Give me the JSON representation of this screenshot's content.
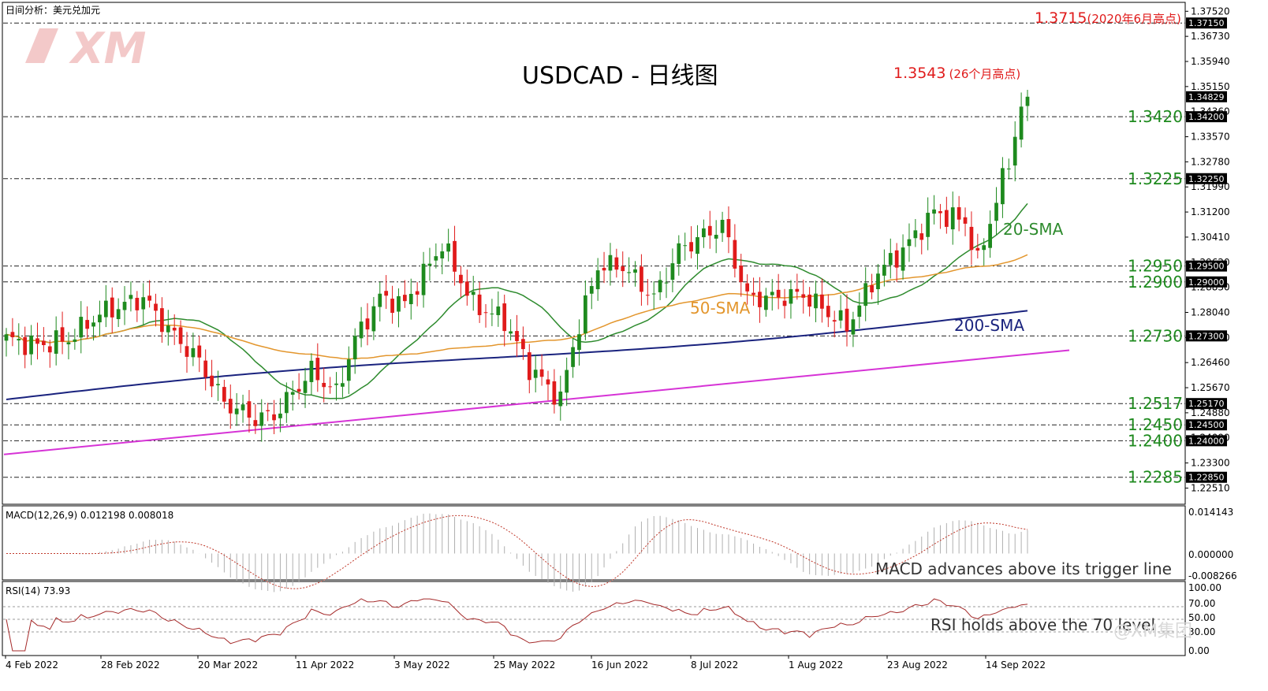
{
  "header": {
    "corner_text": "日间分析：美元兑加元",
    "watermark": "XM"
  },
  "title": "USDCAD - 日线图",
  "price_axis": {
    "min": 1.22,
    "max": 1.378,
    "ticks": [
      "1.37520",
      "1.36730",
      "1.35940",
      "1.35150",
      "1.34360",
      "1.33570",
      "1.32780",
      "1.31990",
      "1.31200",
      "1.30410",
      "1.29620",
      "1.28830",
      "1.28040",
      "1.27250",
      "1.26460",
      "1.25670",
      "1.24880",
      "1.24090",
      "1.23300",
      "1.22510"
    ],
    "boxes": [
      {
        "value": 1.3715,
        "text": "1.37150"
      },
      {
        "value": 1.34829,
        "text": "1.34829"
      },
      {
        "value": 1.342,
        "text": "1.34200"
      },
      {
        "value": 1.3225,
        "text": "1.32250"
      },
      {
        "value": 1.295,
        "text": "1.29500"
      },
      {
        "value": 1.29,
        "text": "1.29000"
      },
      {
        "value": 1.273,
        "text": "1.27300"
      },
      {
        "value": 1.2517,
        "text": "1.25170"
      },
      {
        "value": 1.245,
        "text": "1.24500"
      },
      {
        "value": 1.24,
        "text": "1.24000"
      },
      {
        "value": 1.2285,
        "text": "1.22850"
      }
    ]
  },
  "levels": [
    {
      "value": 1.342,
      "text": "1.3420"
    },
    {
      "value": 1.3225,
      "text": "1.3225"
    },
    {
      "value": 1.295,
      "text": "1.2950"
    },
    {
      "value": 1.29,
      "text": "1.2900"
    },
    {
      "value": 1.273,
      "text": "1.2730"
    },
    {
      "value": 1.2517,
      "text": "1.2517"
    },
    {
      "value": 1.245,
      "text": "1.2450"
    },
    {
      "value": 1.24,
      "text": "1.2400"
    },
    {
      "value": 1.2285,
      "text": "1.2285"
    }
  ],
  "annotations": {
    "high_2020": {
      "value": "1.3715",
      "note": "(2020年6月高点)"
    },
    "high_26m": {
      "value": "1.3543",
      "note": "(26个月高点)"
    }
  },
  "sma_labels": {
    "sma20": "20-SMA",
    "sma50": "50-SMA",
    "sma200": "200-SMA"
  },
  "dates": [
    "4 Feb 2022",
    "28 Feb 2022",
    "20 Mar 2022",
    "11 Apr 2022",
    "3 May 2022",
    "25 May 2022",
    "16 Jun 2022",
    "8 Jul 2022",
    "1 Aug 2022",
    "23 Aug 2022",
    "14 Sep 2022"
  ],
  "macd": {
    "label": "MACD(12,26,9) 0.012198 0.008018",
    "ticks": [
      "0.014143",
      "0.000000",
      "-0.008266"
    ],
    "min": -0.009,
    "max": 0.015,
    "note": "MACD advances above its trigger line"
  },
  "rsi": {
    "label": "RSI(14) 73.93",
    "ticks": [
      "100.00",
      "70.00",
      "50.00",
      "30.00",
      "0.00"
    ],
    "note": "RSI holds above the 70 level"
  },
  "watermark_bottom": "@XM集团",
  "colors": {
    "bull": "#1e8a1e",
    "bear": "#e01b1b",
    "sma20": "#2e8b2e",
    "sma50": "#e3962d",
    "sma200": "#1a237e",
    "trend": "#d633d6",
    "macd_hist": "#b0b0b0",
    "macd_signal": "#c0392b",
    "rsi_line": "#a52a2a"
  },
  "chart_data": {
    "type": "candlestick",
    "symbol": "USDCAD",
    "timeframe": "Daily",
    "first_date": "2022-02-03",
    "last_date": "2022-09-21",
    "ohlc_key_points": [
      {
        "date": "2022-03-07",
        "high": 1.29
      },
      {
        "date": "2022-03-31",
        "low": 1.24
      },
      {
        "date": "2022-05-12",
        "high": 1.3076
      },
      {
        "date": "2022-06-08",
        "low": 1.2517
      },
      {
        "date": "2022-07-14",
        "high": 1.3225
      },
      {
        "date": "2022-08-11",
        "low": 1.273
      },
      {
        "date": "2022-09-20",
        "high": 1.3543
      },
      {
        "date": "2022-09-21",
        "close": 1.34829
      }
    ],
    "sma_end_values": {
      "sma20": 1.32,
      "sma50": 1.3005,
      "sma200": 1.2805
    },
    "trendline": {
      "start": {
        "date": "2022-02-03",
        "value": 1.2357
      },
      "end": {
        "date": "2022-09-30",
        "value": 1.2685
      }
    },
    "macd_last": {
      "macd": 0.012198,
      "signal": 0.008018
    },
    "rsi_last": 73.93
  }
}
